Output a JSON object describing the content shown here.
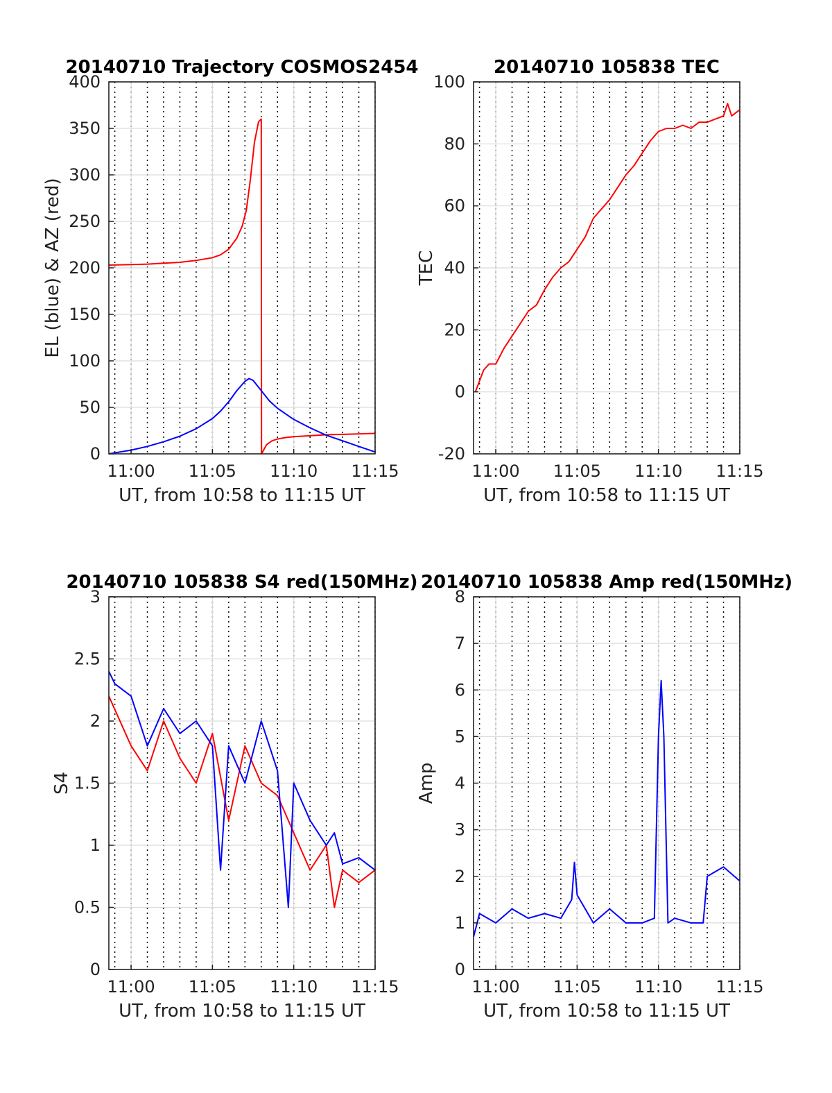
{
  "chart_data": [
    {
      "type": "line",
      "title": "20140710 Trajectory COSMOS2454",
      "xlabel": "UT, from 10:58 to 11:15 UT",
      "ylabel": "EL (blue) & AZ (red)",
      "xlim": [
        "10:58:38",
        "11:15"
      ],
      "ylim": [
        0,
        400
      ],
      "xticks": [
        "11:00",
        "11:05",
        "11:10",
        "11:15"
      ],
      "yticks": [
        0,
        50,
        100,
        150,
        200,
        250,
        300,
        350,
        400
      ],
      "grid": true,
      "series": [
        {
          "color": "#ff0000",
          "x": [
            "10:58:38",
            "11:00:00",
            "11:01:00",
            "11:02:00",
            "11:03:00",
            "11:04:00",
            "11:05:00",
            "11:05:30",
            "11:06:00",
            "11:06:30",
            "11:06:50",
            "11:07:05",
            "11:07:20",
            "11:07:35",
            "11:07:50",
            "11:08:00",
            "11:08:01",
            "11:08:20",
            "11:08:40",
            "11:09:00",
            "11:09:30",
            "11:10:00",
            "11:11:00",
            "11:12:00",
            "11:13:00",
            "11:14:00",
            "11:15:00"
          ],
          "values": [
            203,
            203.5,
            204,
            205,
            206,
            208,
            211,
            214,
            220,
            232,
            245,
            262,
            295,
            335,
            357,
            360,
            0,
            10,
            14,
            16,
            17.5,
            18.5,
            19.5,
            20.5,
            21,
            21.5,
            22
          ]
        },
        {
          "color": "#0000ff",
          "x": [
            "10:58:38",
            "11:00:00",
            "11:01:00",
            "11:02:00",
            "11:03:00",
            "11:04:00",
            "11:05:00",
            "11:05:30",
            "11:06:00",
            "11:06:30",
            "11:07:00",
            "11:07:15",
            "11:07:30",
            "11:08:00",
            "11:08:30",
            "11:09:00",
            "11:10:00",
            "11:11:00",
            "11:12:00",
            "11:13:00",
            "11:14:00",
            "11:15:00"
          ],
          "values": [
            0,
            4,
            8,
            13,
            19,
            27,
            38,
            46,
            56,
            68,
            78,
            81,
            79,
            68,
            57,
            49,
            37,
            28,
            20,
            14,
            8,
            2
          ]
        }
      ]
    },
    {
      "type": "line",
      "title": "20140710 105838 TEC",
      "xlabel": "UT, from 10:58 to 11:15 UT",
      "ylabel": "TEC",
      "xlim": [
        "10:58:38",
        "11:15"
      ],
      "ylim": [
        -20,
        100
      ],
      "xticks": [
        "11:00",
        "11:05",
        "11:10",
        "11:15"
      ],
      "yticks": [
        -20,
        0,
        20,
        40,
        60,
        80,
        100
      ],
      "grid": true,
      "series": [
        {
          "color": "#ff0000",
          "x": [
            "10:58:45",
            "10:59:15",
            "10:59:35",
            "11:00:00",
            "11:00:30",
            "11:01:00",
            "11:01:30",
            "11:02:00",
            "11:02:30",
            "11:03:00",
            "11:03:30",
            "11:04:00",
            "11:04:30",
            "11:05:00",
            "11:05:30",
            "11:06:00",
            "11:06:30",
            "11:07:00",
            "11:07:30",
            "11:08:00",
            "11:08:30",
            "11:09:00",
            "11:09:30",
            "11:10:00",
            "11:10:30",
            "11:11:00",
            "11:11:30",
            "11:12:00",
            "11:12:30",
            "11:13:00",
            "11:13:30",
            "11:14:00",
            "11:14:15",
            "11:14:30",
            "11:15:00"
          ],
          "values": [
            0,
            7,
            9,
            9,
            14,
            18,
            22,
            26,
            28,
            33,
            37,
            40,
            42,
            46,
            50,
            56,
            59,
            62,
            66,
            70,
            73,
            77,
            81,
            84,
            85,
            85,
            86,
            85,
            87,
            87,
            88,
            89,
            93,
            89,
            91
          ]
        }
      ]
    },
    {
      "type": "line",
      "title": "20140710 105838 S4 red(150MHz)",
      "xlabel": "UT, from 10:58 to 11:15 UT",
      "ylabel": "S4",
      "xlim": [
        "10:58:38",
        "11:15"
      ],
      "ylim": [
        0,
        3
      ],
      "xticks": [
        "11:00",
        "11:05",
        "11:10",
        "11:15"
      ],
      "yticks": [
        0,
        0.5,
        1,
        1.5,
        2,
        2.5,
        3
      ],
      "grid": true,
      "series": [
        {
          "color": "#ff0000",
          "x": [
            "10:58:38",
            "11:00:00",
            "11:01:00",
            "11:02:00",
            "11:03:00",
            "11:04:00",
            "11:05:00",
            "11:06:00",
            "11:07:00",
            "11:08:00",
            "11:09:00",
            "11:10:00",
            "11:11:00",
            "11:12:00",
            "11:12:30",
            "11:13:00",
            "11:14:00",
            "11:15:00"
          ],
          "values": [
            2.2,
            1.8,
            1.6,
            2.0,
            1.7,
            1.5,
            1.9,
            1.2,
            1.8,
            1.5,
            1.4,
            1.1,
            0.8,
            1.0,
            0.5,
            0.8,
            0.7,
            0.8
          ]
        },
        {
          "color": "#0000ff",
          "x": [
            "10:58:38",
            "10:59:00",
            "11:00:00",
            "11:01:00",
            "11:02:00",
            "11:03:00",
            "11:04:00",
            "11:05:00",
            "11:05:30",
            "11:06:00",
            "11:07:00",
            "11:08:00",
            "11:09:00",
            "11:09:40",
            "11:10:00",
            "11:11:00",
            "11:12:00",
            "11:12:30",
            "11:13:00",
            "11:14:00",
            "11:15:00"
          ],
          "values": [
            2.4,
            2.3,
            2.2,
            1.8,
            2.1,
            1.9,
            2.0,
            1.8,
            0.8,
            1.8,
            1.5,
            2.0,
            1.6,
            0.5,
            1.5,
            1.2,
            1.0,
            1.1,
            0.85,
            0.9,
            0.8
          ]
        }
      ]
    },
    {
      "type": "line",
      "title": "20140710 105838 Amp red(150MHz)",
      "xlabel": "UT, from 10:58 to 11:15 UT",
      "ylabel": "Amp",
      "xlim": [
        "10:58:38",
        "11:15"
      ],
      "ylim": [
        0,
        8
      ],
      "xticks": [
        "11:00",
        "11:05",
        "11:10",
        "11:15"
      ],
      "yticks": [
        0,
        1,
        2,
        3,
        4,
        5,
        6,
        7,
        8
      ],
      "grid": true,
      "series": [
        {
          "color": "#0000ff",
          "x": [
            "10:58:38",
            "10:59:00",
            "11:00:00",
            "11:01:00",
            "11:02:00",
            "11:03:00",
            "11:04:00",
            "11:04:40",
            "11:04:50",
            "11:05:00",
            "11:06:00",
            "11:07:00",
            "11:08:00",
            "11:09:00",
            "11:09:45",
            "11:10:00",
            "11:10:10",
            "11:10:20",
            "11:10:35",
            "11:11:00",
            "11:12:00",
            "11:12:45",
            "11:13:00",
            "11:14:00",
            "11:15:00"
          ],
          "values": [
            0.7,
            1.2,
            1.0,
            1.3,
            1.1,
            1.2,
            1.1,
            1.5,
            2.3,
            1.6,
            1.0,
            1.3,
            1.0,
            1.0,
            1.1,
            5.0,
            6.2,
            5.0,
            1.0,
            1.1,
            1.0,
            1.0,
            2.0,
            2.2,
            1.9
          ]
        }
      ]
    }
  ]
}
